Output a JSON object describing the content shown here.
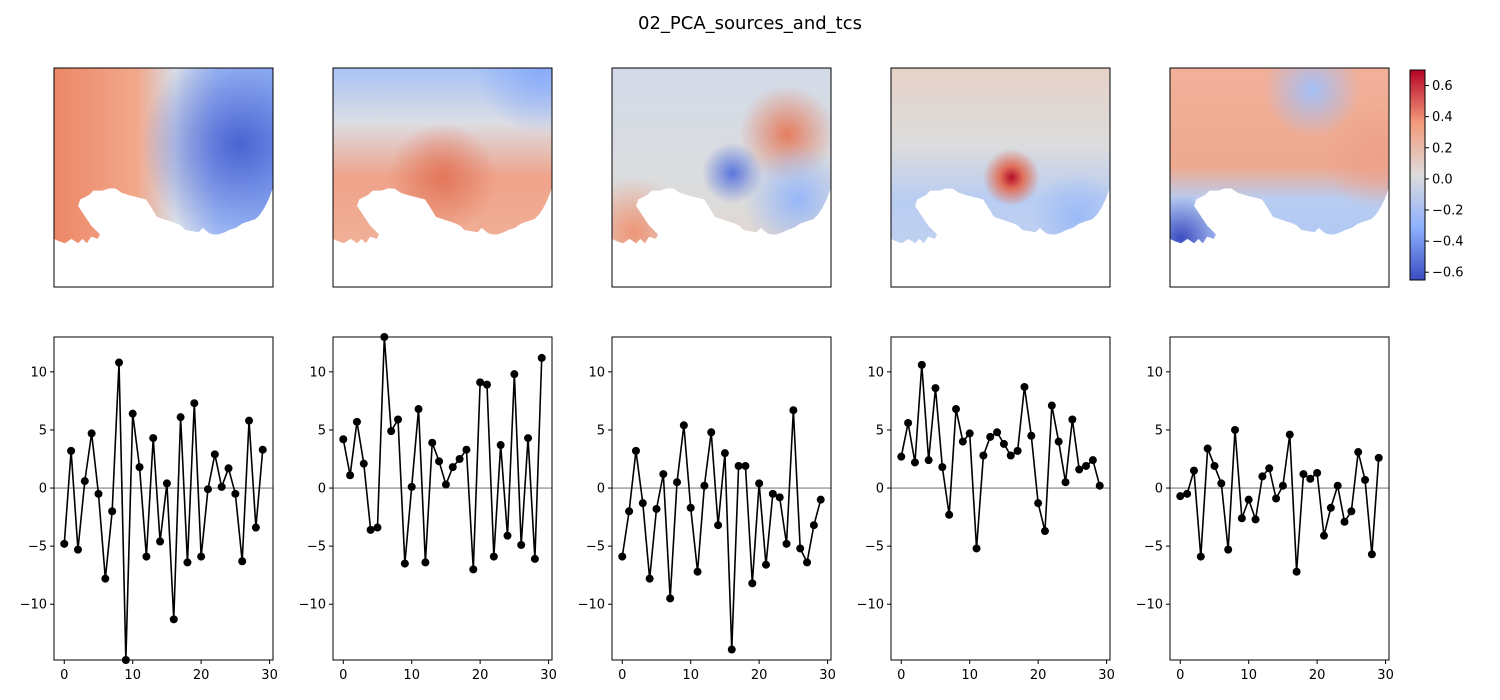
{
  "figure": {
    "title": "02_PCA_sources_and_tcs"
  },
  "chart_data": {
    "type": "line",
    "title": "02_PCA_sources_and_tcs",
    "colorbar": {
      "colormap": "coolwarm",
      "range": [
        -0.65,
        0.7
      ],
      "ticks": [
        0.6,
        0.4,
        0.2,
        0.0,
        -0.2,
        -0.4,
        -0.6
      ],
      "tick_labels": [
        "0.6",
        "0.4",
        "0.2",
        "0.0",
        "−0.2",
        "−0.4",
        "−0.6"
      ]
    },
    "xlim": [
      -1.5,
      30.5
    ],
    "ylim": [
      -14.8,
      13
    ],
    "xticks": [
      0,
      10,
      20,
      30
    ],
    "xtick_labels": [
      "0",
      "10",
      "20",
      "30"
    ],
    "yticks": [
      10,
      5,
      0,
      -5,
      -10
    ],
    "ytick_labels": [
      "10",
      "5",
      "0",
      "−5",
      "−10"
    ],
    "zero_line": 0,
    "line_color": "#000000",
    "zero_line_color": "#808080",
    "x": [
      0,
      1,
      2,
      3,
      4,
      5,
      6,
      7,
      8,
      9,
      10,
      11,
      12,
      13,
      14,
      15,
      16,
      17,
      18,
      19,
      20,
      21,
      22,
      23,
      24,
      25,
      26,
      27,
      28,
      29
    ],
    "series": [
      {
        "values": [
          -4.8,
          3.2,
          -5.3,
          0.6,
          4.7,
          -0.5,
          -7.8,
          -2.0,
          10.8,
          -14.8,
          6.4,
          1.8,
          -5.9,
          4.3,
          -4.6,
          0.4,
          -11.3,
          6.1,
          -6.4,
          7.3,
          -5.9,
          -0.1,
          2.9,
          0.1,
          1.7,
          -0.5,
          -6.3,
          5.8,
          -3.4,
          3.3
        ]
      },
      {
        "values": [
          4.2,
          1.1,
          5.7,
          2.1,
          -3.6,
          -3.4,
          13.0,
          4.9,
          5.9,
          -6.5,
          0.1,
          6.8,
          -6.4,
          3.9,
          2.3,
          0.3,
          1.8,
          2.5,
          3.3,
          -7.0,
          9.1,
          8.9,
          -5.9,
          3.7,
          -4.1,
          9.8,
          -4.9,
          4.3,
          -6.1,
          11.2
        ]
      },
      {
        "values": [
          -5.9,
          -2.0,
          3.2,
          -1.3,
          -7.8,
          -1.8,
          1.2,
          -9.5,
          0.5,
          5.4,
          -1.7,
          -7.2,
          0.2,
          4.8,
          -3.2,
          3.0,
          -13.9,
          1.9,
          1.9,
          -8.2,
          0.4,
          -6.6,
          -0.5,
          -0.8,
          -4.8,
          6.7,
          -5.2,
          -6.4,
          -3.2,
          -1.0
        ]
      },
      {
        "values": [
          2.7,
          5.6,
          2.2,
          10.6,
          2.4,
          8.6,
          1.8,
          -2.3,
          6.8,
          4.0,
          4.7,
          -5.2,
          2.8,
          4.4,
          4.8,
          3.8,
          2.8,
          3.2,
          8.7,
          4.5,
          -1.3,
          -3.7,
          7.1,
          4.0,
          0.5,
          5.9,
          1.6,
          1.9,
          2.4,
          0.2
        ]
      },
      {
        "values": [
          -0.7,
          -0.5,
          1.5,
          -5.9,
          3.4,
          1.9,
          0.4,
          -5.3,
          5.0,
          -2.6,
          -1.0,
          -2.7,
          1.0,
          1.7,
          -0.9,
          0.2,
          4.6,
          -7.2,
          1.2,
          0.8,
          1.3,
          -4.1,
          -1.7,
          0.2,
          -2.9,
          -2.0,
          3.1,
          0.7,
          -5.7,
          2.6
        ]
      }
    ],
    "grid": false,
    "legend": "none"
  }
}
